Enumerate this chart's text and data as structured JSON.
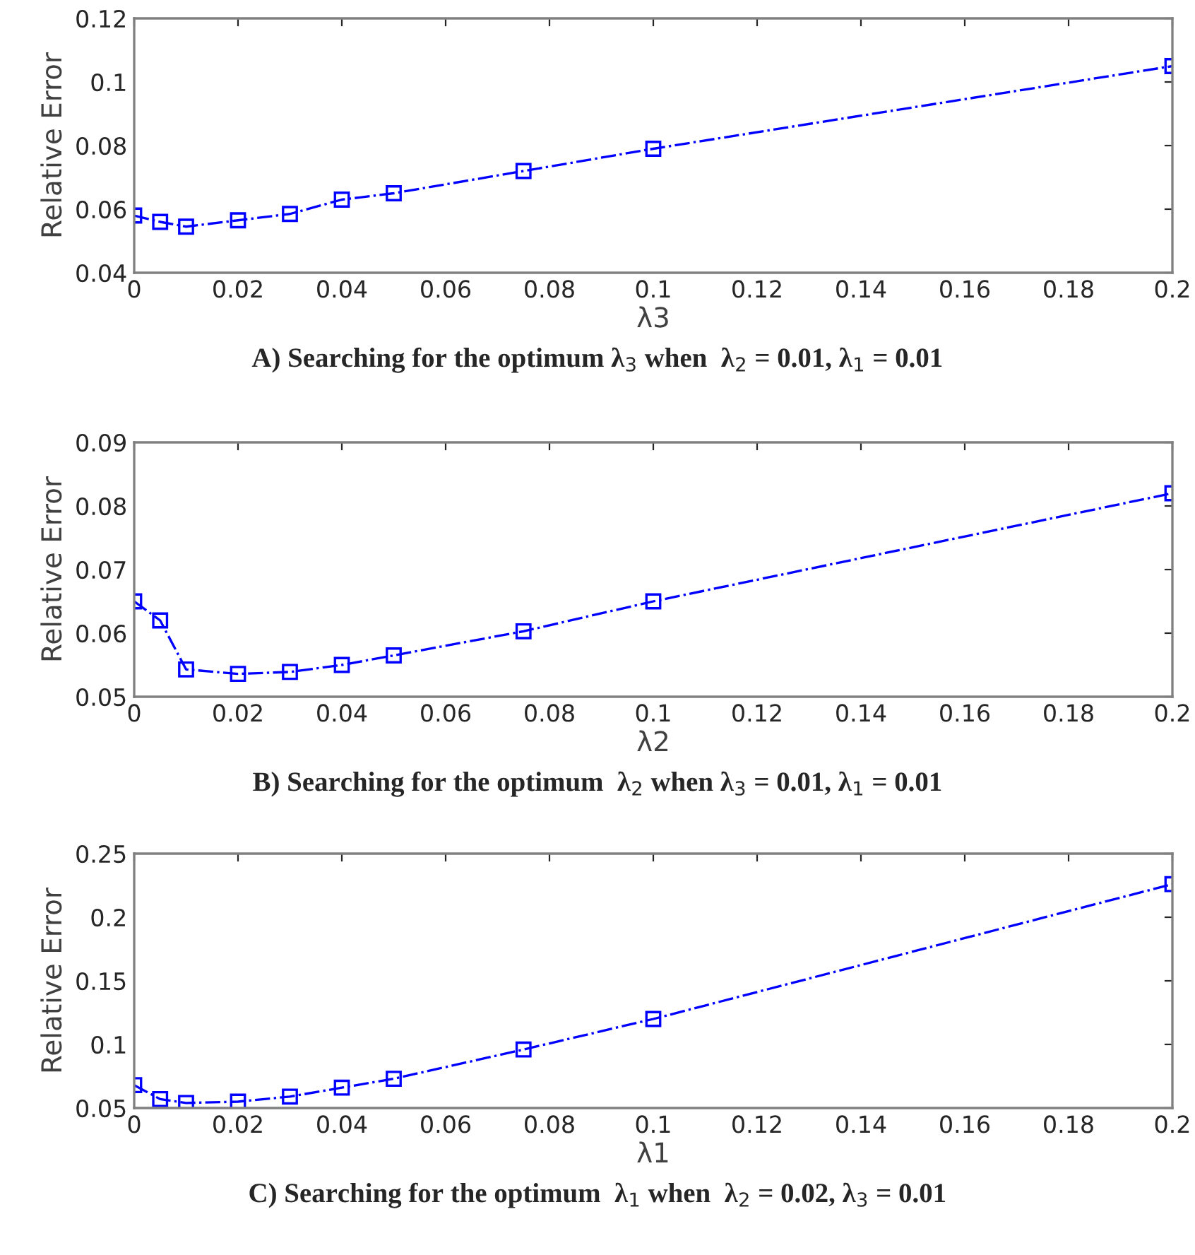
{
  "chart_data": [
    {
      "type": "line",
      "xlabel": "λ3",
      "ylabel": "Relative Error",
      "x": [
        0,
        0.005,
        0.01,
        0.02,
        0.03,
        0.04,
        0.05,
        0.075,
        0.1,
        0.2
      ],
      "series": [
        {
          "color": "#0000ff",
          "values": [
            0.058,
            0.056,
            0.0545,
            0.0565,
            0.0585,
            0.063,
            0.065,
            0.072,
            0.079,
            0.105
          ]
        }
      ],
      "xlim": [
        0,
        0.2
      ],
      "xticks": [
        0,
        0.02,
        0.04,
        0.06,
        0.08,
        0.1,
        0.12,
        0.14,
        0.16,
        0.18,
        0.2
      ],
      "ylim": [
        0.04,
        0.12
      ],
      "yticks": [
        0.04,
        0.06,
        0.08,
        0.1,
        0.12
      ],
      "marker": "square",
      "line_style": "dashdot",
      "grid": false,
      "annotations": [
        "A) Searching for the optimum λ$_{3}$ when  λ$_{2}$ = 0.01, λ$_{1}$ = 0.01"
      ]
    },
    {
      "type": "line",
      "xlabel": "λ2",
      "ylabel": "Relative Error",
      "x": [
        0,
        0.005,
        0.01,
        0.02,
        0.03,
        0.04,
        0.05,
        0.075,
        0.1,
        0.2
      ],
      "series": [
        {
          "color": "#0000ff",
          "values": [
            0.065,
            0.062,
            0.0543,
            0.0536,
            0.0539,
            0.055,
            0.0565,
            0.0603,
            0.065,
            0.082
          ]
        }
      ],
      "xlim": [
        0,
        0.2
      ],
      "xticks": [
        0,
        0.02,
        0.04,
        0.06,
        0.08,
        0.1,
        0.12,
        0.14,
        0.16,
        0.18,
        0.2
      ],
      "ylim": [
        0.05,
        0.09
      ],
      "yticks": [
        0.05,
        0.06,
        0.07,
        0.08,
        0.09
      ],
      "marker": "square",
      "line_style": "dashdot",
      "grid": false,
      "annotations": [
        "B) Searching for the optimum  λ$_{2}$ when λ$_{3}$ = 0.01, λ$_{1}$ = 0.01"
      ]
    },
    {
      "type": "line",
      "xlabel": "λ1",
      "ylabel": "Relative Error",
      "x": [
        0,
        0.005,
        0.01,
        0.02,
        0.03,
        0.04,
        0.05,
        0.075,
        0.1,
        0.2
      ],
      "series": [
        {
          "color": "#0000ff",
          "values": [
            0.068,
            0.057,
            0.054,
            0.055,
            0.059,
            0.066,
            0.073,
            0.096,
            0.12,
            0.226
          ]
        }
      ],
      "xlim": [
        0,
        0.2
      ],
      "xticks": [
        0,
        0.02,
        0.04,
        0.06,
        0.08,
        0.1,
        0.12,
        0.14,
        0.16,
        0.18,
        0.2
      ],
      "ylim": [
        0.05,
        0.25
      ],
      "yticks": [
        0.05,
        0.1,
        0.15,
        0.2,
        0.25
      ],
      "marker": "square",
      "line_style": "dashdot",
      "grid": false,
      "annotations": [
        "C) Searching for the optimum  λ$_{1}$ when  λ$_{2}$ = 0.02, λ$_{3}$ = 0.01"
      ]
    }
  ]
}
